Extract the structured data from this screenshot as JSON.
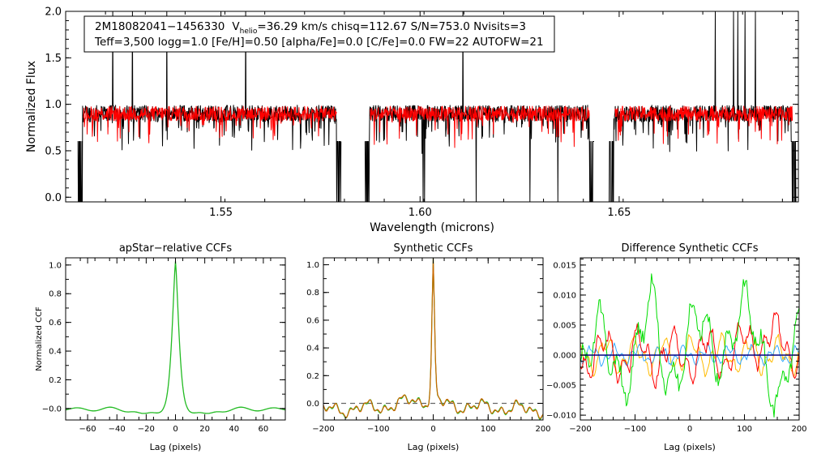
{
  "colors": {
    "black": "#000000",
    "red": "#ff0000",
    "green": "#22bb22",
    "brightgreen": "#00dd00",
    "orange": "#cc6600",
    "gold": "#ffbb00",
    "cyan": "#33aaff",
    "navy": "#000080",
    "dashed": "#666666"
  },
  "chart_data": [
    {
      "id": "spectrum",
      "type": "line",
      "title": "",
      "xlabel": "Wavelength (microns)",
      "ylabel": "Normalized Flux",
      "xlim": [
        1.511,
        1.695
      ],
      "ylim": [
        -0.05,
        2.0
      ],
      "xticks": [
        1.55,
        1.6,
        1.65
      ],
      "xtick_labels": [
        "1.55",
        "1.60",
        "1.65"
      ],
      "yticks": [
        0.0,
        0.5,
        1.0,
        1.5,
        2.0
      ],
      "ytick_labels": [
        "0.0",
        "0.5",
        "1.0",
        "1.5",
        "2.0"
      ],
      "chips": [
        [
          1.514,
          1.5802
        ],
        [
          1.5861,
          1.6437
        ],
        [
          1.6474,
          1.6944
        ]
      ],
      "model_chips": [
        [
          1.5155,
          1.579
        ],
        [
          1.5875,
          1.6425
        ],
        [
          1.649,
          1.6935
        ]
      ],
      "annotation": {
        "line1_obj": "2M18082041−1456330",
        "line1_v": "V",
        "line1_sub": "helio",
        "line1_rest": "=36.29 km/s  chisq=112.67  S/N=753.0  Nvisits=3",
        "line2": "Teff=3,500 logg=1.0 [Fe/H]=0.50 [alpha/Fe]=0.0 [C/Fe]=0.0 FW=22 AUTOFW=21"
      },
      "series": [
        {
          "name": "observed",
          "color": "black"
        },
        {
          "name": "model",
          "color": "red"
        }
      ]
    },
    {
      "id": "apstar-ccf",
      "type": "line",
      "title": "apStar−relative CCFs",
      "xlabel": "Lag (pixels)",
      "ylabel": "Normalized CCF",
      "xlim": [
        -75,
        75
      ],
      "ylim": [
        -0.08,
        1.05
      ],
      "xticks": [
        -60,
        -40,
        -20,
        0,
        20,
        40,
        60
      ],
      "xtick_labels": [
        "−60",
        "−40",
        "−20",
        "0",
        "20",
        "40",
        "60"
      ],
      "yticks": [
        0.0,
        0.2,
        0.4,
        0.6,
        0.8,
        1.0
      ],
      "ytick_labels": [
        "−0.0",
        "0.2",
        "0.4",
        "0.6",
        "0.8",
        "1.0"
      ],
      "peak": 1.0,
      "series": [
        {
          "name": "ccf",
          "color": "green"
        }
      ]
    },
    {
      "id": "synthetic-ccf",
      "type": "line",
      "title": "Synthetic CCFs",
      "xlabel": "Lag (pixels)",
      "ylabel": "",
      "xlim": [
        -200,
        200
      ],
      "ylim": [
        -0.12,
        1.05
      ],
      "xticks": [
        -200,
        -100,
        0,
        100,
        200
      ],
      "xtick_labels": [
        "−200",
        "−100",
        "0",
        "100",
        "200"
      ],
      "yticks": [
        0.0,
        0.2,
        0.4,
        0.6,
        0.8,
        1.0
      ],
      "ytick_labels": [
        "0.0",
        "0.2",
        "0.4",
        "0.6",
        "0.8",
        "1.0"
      ],
      "zero_line": 0.0,
      "peak": 1.0,
      "series": [
        {
          "name": "ccf-model",
          "color": "green"
        },
        {
          "name": "ccf-obs",
          "color": "orange"
        }
      ]
    },
    {
      "id": "difference-ccf",
      "type": "line",
      "title": "Difference Synthetic CCFs",
      "xlabel": "Lag (pixels)",
      "ylabel": "",
      "xlim": [
        -200,
        200
      ],
      "ylim": [
        -0.0108,
        0.0162
      ],
      "xticks": [
        -200,
        -100,
        0,
        100,
        200
      ],
      "xtick_labels": [
        "−200",
        "−100",
        "0",
        "100",
        "200"
      ],
      "yticks": [
        -0.01,
        -0.005,
        0.0,
        0.005,
        0.01,
        0.015
      ],
      "ytick_labels": [
        "−0.010",
        "−0.005",
        "0.000",
        "0.005",
        "0.010",
        "0.015"
      ],
      "zero_line": 0.0,
      "series": [
        {
          "name": "diff-1",
          "color": "brightgreen"
        },
        {
          "name": "diff-2",
          "color": "red"
        },
        {
          "name": "diff-3",
          "color": "gold"
        },
        {
          "name": "diff-4",
          "color": "cyan"
        },
        {
          "name": "zero",
          "color": "navy"
        }
      ]
    }
  ]
}
